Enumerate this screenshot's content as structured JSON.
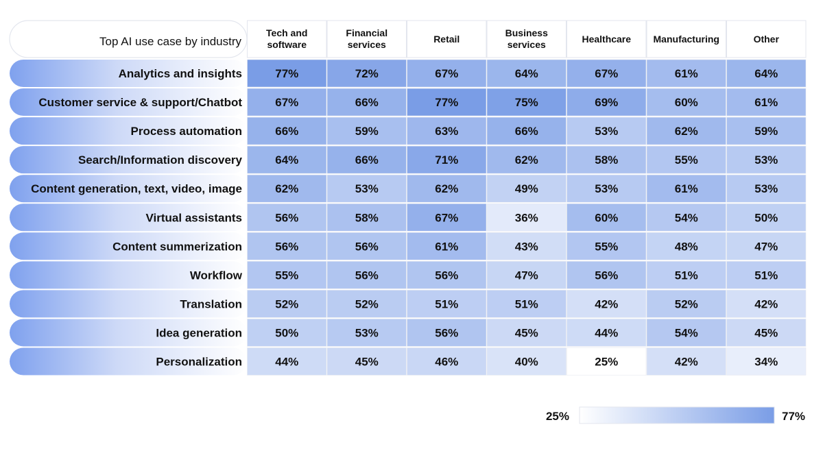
{
  "chart_data": {
    "type": "heatmap",
    "title": "Top AI use case by industry",
    "columns": [
      "Tech and software",
      "Financial services",
      "Retail",
      "Business services",
      "Healthcare",
      "Manufacturing",
      "Other"
    ],
    "rows": [
      "Analytics and insights",
      "Customer service & support/Chatbot",
      "Process automation",
      "Search/Information discovery",
      "Content generation, text, video, image",
      "Virtual assistants",
      "Content summerization",
      "Workflow",
      "Translation",
      "Idea generation",
      "Personalization"
    ],
    "values": [
      [
        77,
        72,
        67,
        64,
        67,
        61,
        64
      ],
      [
        67,
        66,
        77,
        75,
        69,
        60,
        61
      ],
      [
        66,
        59,
        63,
        66,
        53,
        62,
        59
      ],
      [
        64,
        66,
        71,
        62,
        58,
        55,
        53
      ],
      [
        62,
        53,
        62,
        49,
        53,
        61,
        53
      ],
      [
        56,
        58,
        67,
        36,
        60,
        54,
        50
      ],
      [
        56,
        56,
        61,
        43,
        55,
        48,
        47
      ],
      [
        55,
        56,
        56,
        47,
        56,
        51,
        51
      ],
      [
        52,
        52,
        51,
        51,
        42,
        52,
        42
      ],
      [
        50,
        53,
        56,
        45,
        44,
        54,
        45
      ],
      [
        44,
        45,
        46,
        40,
        25,
        42,
        34
      ]
    ],
    "unit": "%",
    "color_scale": {
      "min": 25,
      "max": 77,
      "min_label": "25%",
      "max_label": "77%",
      "min_color": "#ffffff",
      "max_color": "#7a9de6"
    }
  }
}
